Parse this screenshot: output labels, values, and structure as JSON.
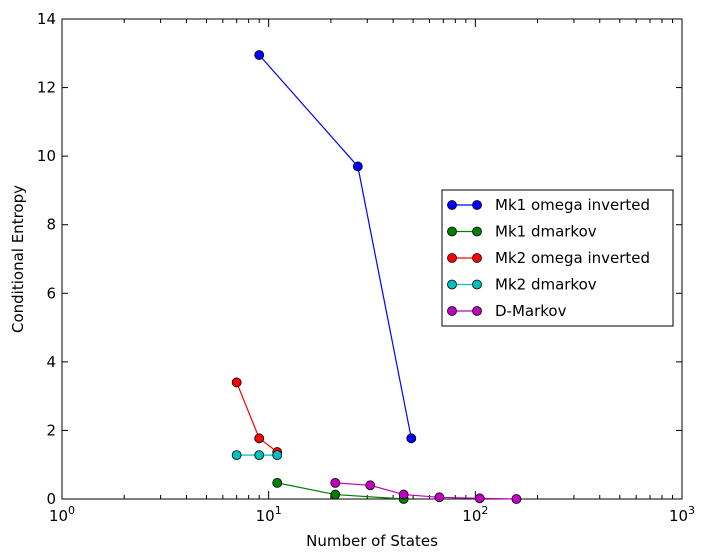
{
  "chart_data": {
    "type": "line",
    "title": "",
    "xlabel": "Number of States",
    "ylabel": "Conditional Entropy",
    "xscale": "log",
    "xlim": [
      1,
      1000
    ],
    "ylim": [
      0,
      14
    ],
    "grid": false,
    "legend_position": "center-right",
    "x_ticks": [
      {
        "value": 1,
        "base": "10",
        "exp": "0"
      },
      {
        "value": 10,
        "base": "10",
        "exp": "1"
      },
      {
        "value": 100,
        "base": "10",
        "exp": "2"
      },
      {
        "value": 1000,
        "base": "10",
        "exp": "3"
      }
    ],
    "y_ticks": [
      0,
      2,
      4,
      6,
      8,
      10,
      12,
      14
    ],
    "series": [
      {
        "name": "Mk1 omega inverted",
        "color": "#0000ff",
        "x": [
          9,
          27,
          49
        ],
        "y": [
          12.95,
          9.7,
          1.77
        ]
      },
      {
        "name": "Mk1 dmarkov",
        "color": "#008000",
        "x": [
          11,
          21,
          45
        ],
        "y": [
          0.47,
          0.13,
          0.0
        ]
      },
      {
        "name": "Mk2 omega inverted",
        "color": "#ff0000",
        "x": [
          7,
          9,
          11
        ],
        "y": [
          3.4,
          1.77,
          1.37
        ]
      },
      {
        "name": "Mk2 dmarkov",
        "color": "#00bfbf",
        "x": [
          7,
          9,
          11
        ],
        "y": [
          1.28,
          1.28,
          1.28
        ]
      },
      {
        "name": "D-Markov",
        "color": "#bf00bf",
        "x": [
          21,
          31,
          45,
          67,
          105,
          158
        ],
        "y": [
          0.47,
          0.4,
          0.13,
          0.05,
          0.02,
          0.0
        ]
      }
    ]
  }
}
